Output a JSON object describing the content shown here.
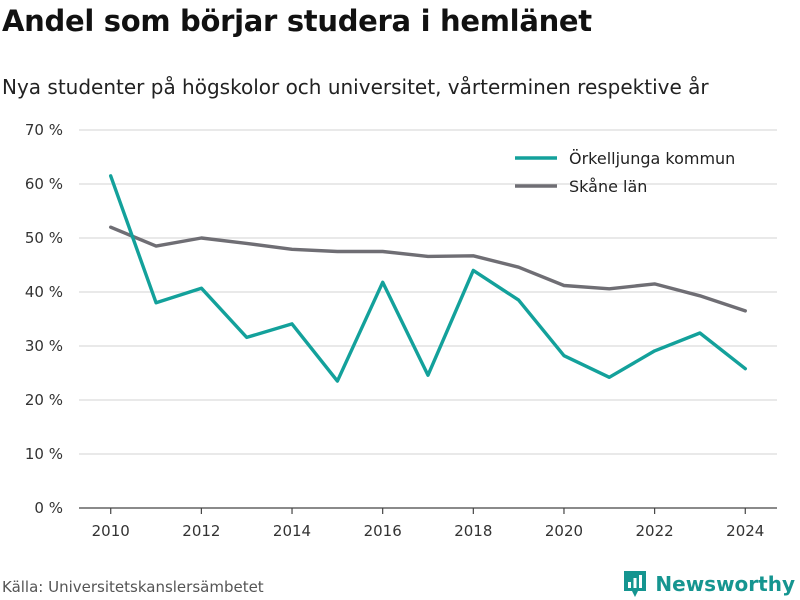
{
  "title": "Andel som börjar studera i hemlänet",
  "subtitle": "Nya studenter på högskolor och universitet, vårterminen respektive år",
  "source": "Källa: Universitetskanslersämbetet",
  "brand": {
    "name": "Newsworthy",
    "icon": "newsworthy-logo-icon",
    "color": "#159590"
  },
  "chart_data": {
    "type": "line",
    "x": [
      2010,
      2011,
      2012,
      2013,
      2014,
      2015,
      2016,
      2017,
      2018,
      2019,
      2020,
      2021,
      2022,
      2023,
      2024
    ],
    "series": [
      {
        "name": "Örkelljunga kommun",
        "color": "#13a19b",
        "values": [
          61.5,
          38.0,
          40.7,
          31.6,
          34.1,
          23.5,
          41.8,
          24.6,
          44.0,
          38.5,
          28.2,
          24.2,
          29.1,
          32.4,
          25.8
        ]
      },
      {
        "name": "Skåne län",
        "color": "#6f6e74",
        "values": [
          52.0,
          48.5,
          50.0,
          49.0,
          47.9,
          47.5,
          47.5,
          46.6,
          46.7,
          44.6,
          41.2,
          40.6,
          41.5,
          39.3,
          36.5
        ]
      }
    ],
    "xticks": [
      2010,
      2012,
      2014,
      2016,
      2018,
      2020,
      2022,
      2024
    ],
    "xtick_labels": [
      "2010",
      "2012",
      "2014",
      "2016",
      "2018",
      "2020",
      "2022",
      "2024"
    ],
    "yticks": [
      0,
      10,
      20,
      30,
      40,
      50,
      60,
      70
    ],
    "ytick_labels": [
      "0 %",
      "10 %",
      "20 %",
      "30 %",
      "40 %",
      "50 %",
      "60 %",
      "70 %"
    ],
    "xlim": [
      2009.3,
      2024.7
    ],
    "ylim": [
      0,
      70
    ],
    "grid": true,
    "legend": "top-right"
  }
}
